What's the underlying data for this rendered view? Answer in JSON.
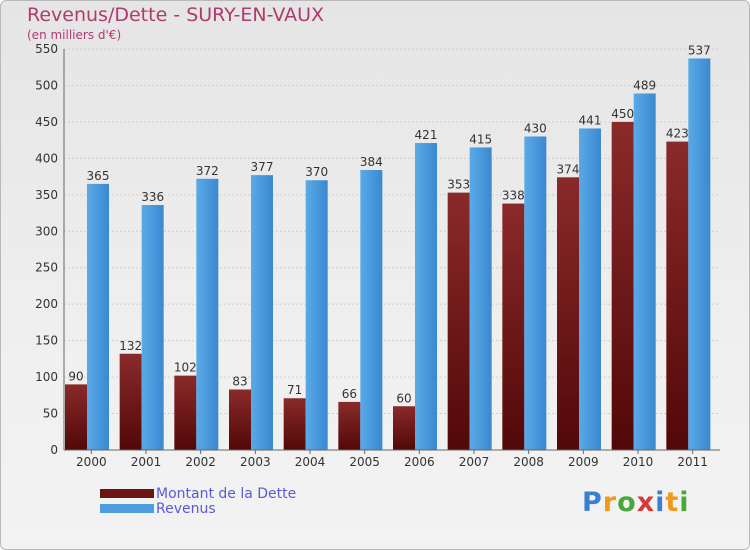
{
  "chart_data": {
    "type": "bar",
    "title": "Revenus/Dette - SURY-EN-VAUX",
    "subtitle": "(en milliers d'€)",
    "categories": [
      "2000",
      "2001",
      "2002",
      "2003",
      "2004",
      "2005",
      "2006",
      "2007",
      "2008",
      "2009",
      "2010",
      "2011"
    ],
    "series": [
      {
        "name": "Montant de la Dette",
        "color": "#6b1414",
        "values": [
          90,
          132,
          102,
          83,
          71,
          66,
          60,
          353,
          338,
          374,
          450,
          423
        ]
      },
      {
        "name": "Revenus",
        "color": "#4d9ee0",
        "values": [
          365,
          336,
          372,
          377,
          370,
          384,
          421,
          415,
          430,
          441,
          489,
          537
        ]
      }
    ],
    "ylim": [
      0,
      550
    ],
    "yticks": [
      0,
      50,
      100,
      150,
      200,
      250,
      300,
      350,
      400,
      450,
      500,
      550
    ],
    "grid": true,
    "legend": "bottom-left",
    "data_labels": true
  },
  "logo": {
    "text": "Proxiti",
    "letters": [
      "P",
      "r",
      "o",
      "x",
      "i",
      "t",
      "i"
    ]
  }
}
